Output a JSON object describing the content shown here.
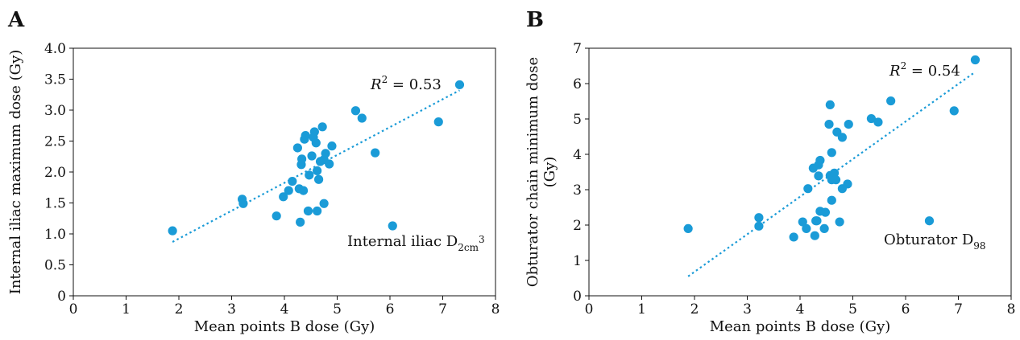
{
  "chart_data": [
    {
      "type": "scatter",
      "panel": "A",
      "xlabel": "Mean points B dose (Gy)",
      "ylabel": "Internal iliac maximum dose (Gy)",
      "xlim": [
        0,
        8
      ],
      "ylim": [
        0,
        4.0
      ],
      "xticks": [
        0,
        1,
        2,
        3,
        4,
        5,
        6,
        7,
        8
      ],
      "xtick_labels": [
        "0",
        "1",
        "2",
        "3",
        "4",
        "5",
        "6",
        "7",
        "8"
      ],
      "yticks": [
        0,
        0.5,
        1.0,
        1.5,
        2.0,
        2.5,
        3.0,
        3.5,
        4.0
      ],
      "ytick_labels": [
        "0",
        "0.5",
        "1.0",
        "1.5",
        "2.0",
        "2.5",
        "3.0",
        "3.5",
        "4.0"
      ],
      "grid": false,
      "color": "#1a9bd7",
      "points": [
        [
          1.88,
          1.05
        ],
        [
          3.2,
          1.56
        ],
        [
          3.22,
          1.49
        ],
        [
          3.85,
          1.29
        ],
        [
          3.98,
          1.6
        ],
        [
          4.08,
          1.7
        ],
        [
          4.15,
          1.85
        ],
        [
          4.25,
          2.39
        ],
        [
          4.28,
          1.73
        ],
        [
          4.3,
          1.19
        ],
        [
          4.32,
          2.12
        ],
        [
          4.33,
          2.21
        ],
        [
          4.36,
          1.7
        ],
        [
          4.38,
          2.53
        ],
        [
          4.4,
          2.59
        ],
        [
          4.45,
          1.37
        ],
        [
          4.47,
          1.95
        ],
        [
          4.52,
          2.26
        ],
        [
          4.55,
          2.56
        ],
        [
          4.57,
          2.65
        ],
        [
          4.6,
          2.47
        ],
        [
          4.62,
          1.37
        ],
        [
          4.62,
          2.02
        ],
        [
          4.65,
          1.88
        ],
        [
          4.68,
          2.17
        ],
        [
          4.72,
          2.73
        ],
        [
          4.75,
          2.2
        ],
        [
          4.75,
          1.49
        ],
        [
          4.78,
          2.3
        ],
        [
          4.85,
          2.13
        ],
        [
          4.9,
          2.42
        ],
        [
          5.35,
          2.99
        ],
        [
          5.47,
          2.87
        ],
        [
          5.72,
          2.31
        ],
        [
          6.05,
          1.13
        ],
        [
          6.92,
          2.81
        ],
        [
          7.32,
          3.41
        ]
      ],
      "trendline": {
        "x": [
          1.88,
          7.32
        ],
        "y": [
          0.87,
          3.32
        ]
      },
      "r2_label": "R",
      "r2_sup": "2",
      "r2_value": " = 0.53",
      "annotation": "Internal iliac D",
      "annotation_sub": "2cm",
      "annotation_sup": "3"
    },
    {
      "type": "scatter",
      "panel": "B",
      "xlabel": "Mean points B dose (Gy)",
      "ylabel_line1": "Obturator chain minimum dose",
      "ylabel_line2": "(Gy)",
      "xlim": [
        0,
        8
      ],
      "ylim": [
        0,
        7
      ],
      "xticks": [
        0,
        1,
        2,
        3,
        4,
        5,
        6,
        7,
        8
      ],
      "xtick_labels": [
        "0",
        "1",
        "2",
        "3",
        "4",
        "5",
        "6",
        "7",
        "8"
      ],
      "yticks": [
        0,
        1,
        2,
        3,
        4,
        5,
        6,
        7
      ],
      "ytick_labels": [
        "0",
        "1",
        "2",
        "3",
        "4",
        "5",
        "6",
        "7"
      ],
      "grid": false,
      "color": "#1a9bd7",
      "points": [
        [
          1.88,
          1.9
        ],
        [
          3.22,
          2.21
        ],
        [
          3.22,
          1.97
        ],
        [
          3.88,
          1.66
        ],
        [
          4.05,
          2.09
        ],
        [
          4.12,
          1.9
        ],
        [
          4.15,
          3.03
        ],
        [
          4.25,
          3.61
        ],
        [
          4.28,
          1.7
        ],
        [
          4.3,
          2.12
        ],
        [
          4.32,
          2.12
        ],
        [
          4.35,
          3.39
        ],
        [
          4.35,
          3.7
        ],
        [
          4.38,
          3.83
        ],
        [
          4.38,
          2.39
        ],
        [
          4.46,
          1.9
        ],
        [
          4.48,
          2.36
        ],
        [
          4.55,
          4.85
        ],
        [
          4.57,
          5.4
        ],
        [
          4.57,
          3.4
        ],
        [
          4.6,
          3.28
        ],
        [
          4.6,
          4.05
        ],
        [
          4.6,
          2.7
        ],
        [
          4.65,
          3.47
        ],
        [
          4.68,
          3.28
        ],
        [
          4.7,
          4.63
        ],
        [
          4.75,
          2.09
        ],
        [
          4.8,
          3.03
        ],
        [
          4.8,
          4.48
        ],
        [
          4.9,
          3.16
        ],
        [
          4.92,
          4.85
        ],
        [
          5.35,
          5.01
        ],
        [
          5.48,
          4.91
        ],
        [
          5.72,
          5.51
        ],
        [
          6.45,
          2.12
        ],
        [
          6.92,
          5.23
        ],
        [
          7.32,
          6.67
        ]
      ],
      "trendline": {
        "x": [
          1.88,
          7.32
        ],
        "y": [
          0.55,
          6.33
        ]
      },
      "r2_label": "R",
      "r2_sup": "2",
      "r2_value": " = 0.54",
      "annotation": "Obturator D",
      "annotation_sub": "98"
    }
  ]
}
